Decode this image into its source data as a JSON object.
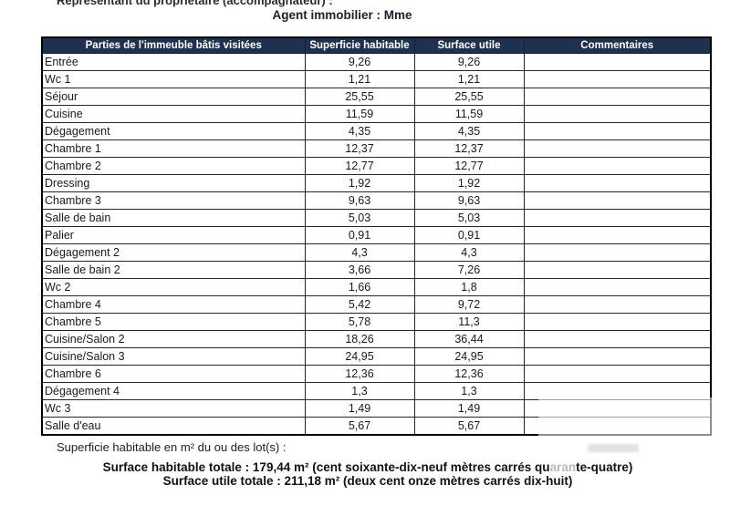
{
  "header": {
    "representant_line": "Représentant du propriétaire (accompagnateur) :",
    "agent_line": "Agent immobilier : Mme"
  },
  "table": {
    "header_bg": "#1e3150",
    "header_text_color": "#ffffff",
    "columns": [
      "Parties de l'immeuble bâtis visitées",
      "Superficie habitable",
      "Surface utile",
      "Commentaires"
    ],
    "rows": [
      {
        "name": "Entrée",
        "superficie": "9,26",
        "surface": "9,26",
        "commentaire": ""
      },
      {
        "name": "Wc 1",
        "superficie": "1,21",
        "surface": "1,21",
        "commentaire": ""
      },
      {
        "name": "Séjour",
        "superficie": "25,55",
        "surface": "25,55",
        "commentaire": ""
      },
      {
        "name": "Cuisine",
        "superficie": "11,59",
        "surface": "11,59",
        "commentaire": ""
      },
      {
        "name": "Dégagement",
        "superficie": "4,35",
        "surface": "4,35",
        "commentaire": ""
      },
      {
        "name": "Chambre 1",
        "superficie": "12,37",
        "surface": "12,37",
        "commentaire": ""
      },
      {
        "name": "Chambre 2",
        "superficie": "12,77",
        "surface": "12,77",
        "commentaire": ""
      },
      {
        "name": "Dressing",
        "superficie": "1,92",
        "surface": "1,92",
        "commentaire": ""
      },
      {
        "name": "Chambre 3",
        "superficie": "9,63",
        "surface": "9,63",
        "commentaire": ""
      },
      {
        "name": "Salle de bain",
        "superficie": "5,03",
        "surface": "5,03",
        "commentaire": ""
      },
      {
        "name": "Palier",
        "superficie": "0,91",
        "surface": "0,91",
        "commentaire": ""
      },
      {
        "name": "Dégagement 2",
        "superficie": "4,3",
        "surface": "4,3",
        "commentaire": ""
      },
      {
        "name": "Salle de bain 2",
        "superficie": "3,66",
        "surface": "7,26",
        "commentaire": ""
      },
      {
        "name": "Wc 2",
        "superficie": "1,66",
        "surface": "1,8",
        "commentaire": ""
      },
      {
        "name": "Chambre 4",
        "superficie": "5,42",
        "surface": "9,72",
        "commentaire": ""
      },
      {
        "name": "Chambre 5",
        "superficie": "5,78",
        "surface": "11,3",
        "commentaire": ""
      },
      {
        "name": "Cuisine/Salon 2",
        "superficie": "18,26",
        "surface": "36,44",
        "commentaire": ""
      },
      {
        "name": "Cuisine/Salon 3",
        "superficie": "24,95",
        "surface": "24,95",
        "commentaire": ""
      },
      {
        "name": "Chambre 6",
        "superficie": "12,36",
        "surface": "12,36",
        "commentaire": ""
      },
      {
        "name": "Dégagement 4",
        "superficie": "1,3",
        "surface": "1,3",
        "commentaire": ""
      },
      {
        "name": "Wc 3",
        "superficie": "1,49",
        "surface": "1,49",
        "commentaire": ""
      },
      {
        "name": "Salle d'eau",
        "superficie": "5,67",
        "surface": "5,67",
        "commentaire": ""
      }
    ]
  },
  "footer": {
    "label": "Superficie habitable en m² du ou des lot(s) :",
    "total_habitable": {
      "prefix": "Surface habitable totale : 179,44 m² (cent soixante-dix-neuf mètres carrés qu",
      "faded": "aran",
      "suffix": "te-quatre)"
    },
    "total_utile": "Surface utile totale : 211,18 m² (deux cent onze mètres carrés dix-huit)"
  },
  "watermark": {
    "smudge_color": "#cdcdcd"
  }
}
